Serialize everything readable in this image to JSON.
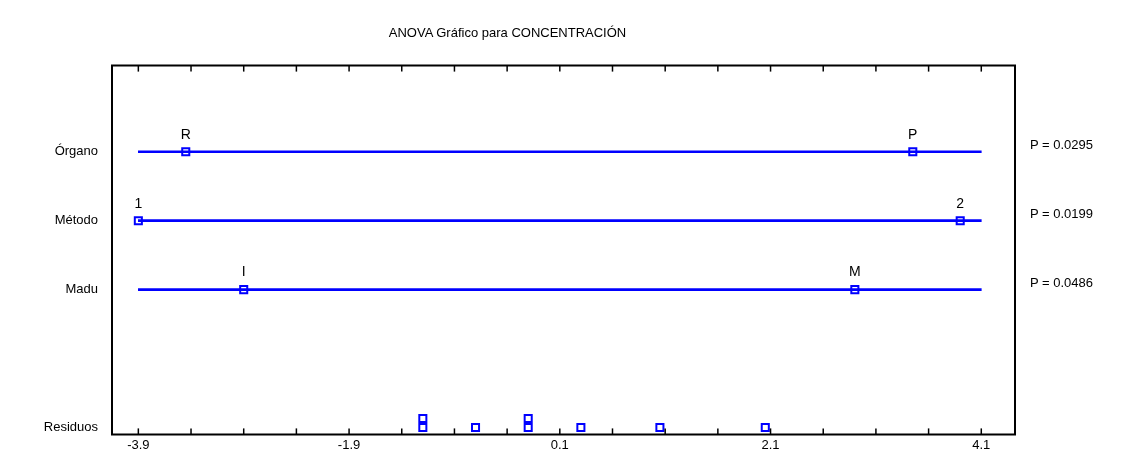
{
  "chart_data": {
    "type": "scatter",
    "title": "ANOVA Gráfico para CONCENTRACIÓN",
    "orientation": "horizontal",
    "categories": [
      "Órgano",
      "Método",
      "Madu",
      null,
      "Residuos"
    ],
    "xlim": [
      -4.15,
      4.42
    ],
    "xticks": [
      -3.9,
      {
        "value": -3.4,
        "label": null
      },
      {
        "value": -2.9,
        "label": null
      },
      {
        "value": -2.4,
        "label": null
      },
      -1.9,
      {
        "value": -1.4,
        "label": null
      },
      {
        "value": -0.9,
        "label": null
      },
      {
        "value": -0.4,
        "label": null
      },
      0.1,
      {
        "value": 0.6,
        "label": null
      },
      {
        "value": 1.1,
        "label": null
      },
      {
        "value": 1.6,
        "label": null
      },
      2.1,
      {
        "value": 2.6,
        "label": null
      },
      {
        "value": 3.1,
        "label": null
      },
      {
        "value": 3.6,
        "label": null
      },
      4.1
    ],
    "grid": false,
    "legend": false,
    "marker": "square",
    "series": [
      {
        "type": "bar",
        "color": "#0000ff",
        "base": [
          -3.9,
          -3.9,
          -3.9,
          null,
          null
        ],
        "values": [
          8,
          8,
          8,
          null,
          null
        ]
      },
      {
        "color": "#0000ff",
        "values": [
          -3.45,
          -3.9,
          -2.9,
          null,
          -1.2
        ]
      },
      {
        "color": "#0000ff",
        "values": [
          3.45,
          3.9,
          2.9,
          null,
          -1.2
        ]
      },
      {
        "color": "#0000ff",
        "values": [
          null,
          null,
          null,
          null,
          -0.7
        ]
      },
      {
        "color": "#0000ff",
        "values": [
          null,
          null,
          null,
          null,
          -0.2
        ]
      },
      {
        "color": "#0000ff",
        "values": [
          null,
          null,
          null,
          null,
          -0.2
        ]
      },
      {
        "color": "#0000ff",
        "values": [
          null,
          null,
          null,
          null,
          0.3
        ]
      },
      {
        "color": "#0000ff",
        "values": [
          null,
          null,
          null,
          null,
          1.05
        ]
      },
      {
        "color": "#0000ff",
        "values": [
          null,
          null,
          null,
          null,
          2.05
        ]
      }
    ],
    "annotations": [
      "P = 0.0295",
      "P = 0.0199",
      "P = 0.0486",
      {
        "text": "R",
        "x": -3.45,
        "y": "Órgano"
      },
      {
        "text": "P",
        "x": 3.45,
        "y": "Órgano"
      },
      {
        "text": "1",
        "x": -3.9,
        "y": "Método"
      },
      {
        "text": "2",
        "x": 3.9,
        "y": "Método"
      },
      {
        "text": "I",
        "x": -2.9,
        "y": "Madu"
      },
      {
        "text": "M",
        "x": 2.9,
        "y": "Madu"
      }
    ]
  }
}
